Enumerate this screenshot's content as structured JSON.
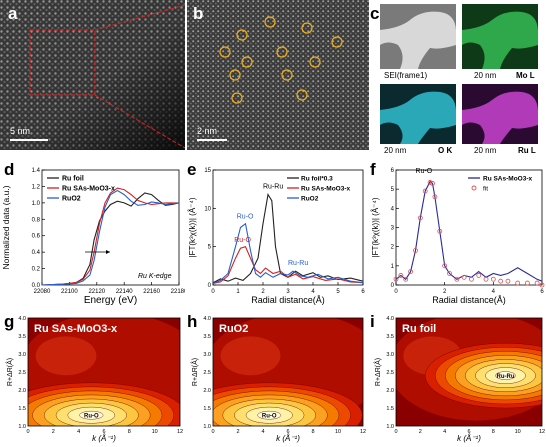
{
  "panels": {
    "a": {
      "label": "a",
      "scale": "5 nm"
    },
    "b": {
      "label": "b",
      "scale": "2 nm"
    },
    "c": {
      "label": "c",
      "maps": [
        "SEI(frame1)",
        "20 nm",
        "Mo L",
        "20 nm",
        "O K",
        "20 nm",
        "Ru L"
      ]
    },
    "d": {
      "label": "d"
    },
    "e": {
      "label": "e"
    },
    "f": {
      "label": "f"
    },
    "g": {
      "label": "g"
    },
    "h": {
      "label": "h"
    },
    "i": {
      "label": "i"
    }
  },
  "colors": {
    "ru_foil": "#222222",
    "ru_sas": "#d62020",
    "ruo2": "#2a5fd0",
    "fit": "#e05050",
    "f_data": "#2a2a9a",
    "em_green": "#2ea84a",
    "em_cyan": "#2aa8b8",
    "em_magenta": "#b03ab8"
  },
  "chart_data": [
    {
      "type": "line",
      "ylabel": "Normalized data (a.u.)",
      "xlabel": "Energy (eV)",
      "xlim": [
        22080,
        22180
      ],
      "ylim": [
        0.0,
        1.4
      ],
      "xticks": [
        "22080",
        "22100",
        "22120",
        "22140",
        "22160",
        "22180"
      ],
      "yticks": [
        "0.0",
        "0.2",
        "0.4",
        "0.6",
        "0.8",
        "1.0",
        "1.2",
        "1.4"
      ],
      "annotation": "Ru K-edge",
      "legend": [
        "Ru foil",
        "Ru SAs-MoO3-x",
        "RuO2"
      ],
      "series": [
        {
          "name": "Ru foil",
          "x": [
            22080,
            22095,
            22105,
            22110,
            22115,
            22118,
            22122,
            22126,
            22130,
            22135,
            22140,
            22145,
            22150,
            22155,
            22160,
            22165,
            22170,
            22175,
            22180
          ],
          "y": [
            0.0,
            0.01,
            0.03,
            0.08,
            0.25,
            0.55,
            0.78,
            0.9,
            0.98,
            1.02,
            1.0,
            0.96,
            1.05,
            1.12,
            1.1,
            1.03,
            0.97,
            0.98,
            1.0
          ]
        },
        {
          "name": "Ru SAs-MoO3-x",
          "x": [
            22080,
            22095,
            22105,
            22110,
            22115,
            22118,
            22122,
            22126,
            22130,
            22135,
            22140,
            22145,
            22150,
            22155,
            22160,
            22165,
            22170,
            22175,
            22180
          ],
          "y": [
            0.0,
            0.01,
            0.03,
            0.07,
            0.18,
            0.4,
            0.75,
            1.0,
            1.12,
            1.18,
            1.16,
            1.1,
            1.03,
            1.0,
            0.98,
            0.99,
            1.0,
            1.0,
            1.0
          ]
        },
        {
          "name": "RuO2",
          "x": [
            22080,
            22095,
            22105,
            22110,
            22115,
            22118,
            22122,
            22126,
            22130,
            22135,
            22140,
            22145,
            22150,
            22155,
            22160,
            22165,
            22170,
            22175,
            22180
          ],
          "y": [
            0.0,
            0.01,
            0.02,
            0.05,
            0.12,
            0.3,
            0.65,
            0.95,
            1.1,
            1.15,
            1.1,
            1.02,
            0.97,
            0.98,
            1.01,
            1.0,
            0.98,
            0.99,
            1.0
          ]
        }
      ]
    },
    {
      "type": "line",
      "ylabel": "|FT(k³χ(k))| (Å⁻⁴)",
      "xlabel": "Radial distance(Å)",
      "xlim": [
        0,
        6
      ],
      "ylim": [
        0,
        15
      ],
      "xticks": [
        "0",
        "1",
        "2",
        "3",
        "4",
        "5",
        "6"
      ],
      "yticks": [
        "0",
        "5",
        "10",
        "15"
      ],
      "legend": [
        "Ru foil*0.3",
        "Ru SAs-MoO3-x",
        "RuO2"
      ],
      "peak_labels": [
        "Ru-Ru",
        "Ru-O",
        "Ru-O",
        "Ru-Ru"
      ],
      "series": [
        {
          "name": "Ru foil*0.3",
          "x": [
            0,
            0.3,
            0.6,
            0.9,
            1.2,
            1.5,
            1.8,
            2.0,
            2.2,
            2.35,
            2.5,
            2.7,
            3.0,
            3.3,
            3.6,
            4.0,
            4.3,
            4.6,
            5.0,
            5.5,
            6.0
          ],
          "y": [
            0.3,
            0.8,
            0.5,
            0.9,
            0.6,
            1.5,
            3.5,
            8.0,
            11.8,
            11.0,
            5.0,
            1.5,
            1.0,
            1.8,
            1.2,
            1.6,
            1.0,
            1.2,
            0.7,
            0.9,
            0.5
          ]
        },
        {
          "name": "Ru SAs-MoO3-x",
          "x": [
            0,
            0.3,
            0.6,
            0.9,
            1.1,
            1.3,
            1.5,
            1.7,
            1.9,
            2.1,
            2.4,
            2.7,
            3.0,
            3.3,
            3.6,
            4.0,
            4.5,
            5.0,
            5.5,
            6.0
          ],
          "y": [
            0.2,
            0.4,
            1.2,
            3.5,
            4.8,
            5.0,
            3.5,
            2.0,
            1.5,
            2.2,
            1.5,
            1.8,
            1.0,
            1.4,
            0.8,
            1.1,
            0.6,
            0.8,
            0.4,
            0.3
          ]
        },
        {
          "name": "RuO2",
          "x": [
            0,
            0.3,
            0.6,
            0.9,
            1.1,
            1.3,
            1.5,
            1.7,
            1.9,
            2.1,
            2.4,
            2.7,
            3.0,
            3.2,
            3.5,
            3.8,
            4.2,
            4.6,
            5.0,
            5.5,
            6.0
          ],
          "y": [
            0.2,
            0.6,
            1.5,
            5.0,
            7.5,
            8.0,
            4.5,
            1.5,
            1.0,
            1.6,
            1.0,
            1.5,
            1.3,
            1.8,
            1.2,
            1.0,
            1.4,
            0.8,
            1.0,
            0.5,
            0.3
          ]
        }
      ]
    },
    {
      "type": "line",
      "ylabel": "|FT(k³χ(k))| (Å⁻⁴)",
      "xlabel": "Radial distance(Å)",
      "xlim": [
        0,
        6
      ],
      "ylim": [
        0,
        6
      ],
      "xticks": [
        "0",
        "2",
        "4",
        "6"
      ],
      "yticks": [
        "0",
        "1",
        "2",
        "3",
        "4",
        "5",
        "6"
      ],
      "peak_label": "Ru-O",
      "legend": [
        "Ru SAs-MoO3-x",
        "fit"
      ],
      "series": [
        {
          "name": "Ru SAs-MoO3-x",
          "x": [
            0,
            0.2,
            0.4,
            0.6,
            0.8,
            1.0,
            1.2,
            1.4,
            1.5,
            1.6,
            1.8,
            2.0,
            2.2,
            2.5,
            2.8,
            3.1,
            3.4,
            3.7,
            4.0,
            4.3,
            4.6,
            5.0,
            5.4,
            5.8,
            6.0
          ],
          "y": [
            0.3,
            0.5,
            0.3,
            0.7,
            1.8,
            3.5,
            4.9,
            5.4,
            5.3,
            4.6,
            2.8,
            1.0,
            0.6,
            0.3,
            0.5,
            0.4,
            0.7,
            0.4,
            0.6,
            0.5,
            0.6,
            0.9,
            0.6,
            0.3,
            0.2
          ]
        },
        {
          "name": "fit",
          "x": [
            0,
            0.2,
            0.4,
            0.6,
            0.8,
            1.0,
            1.2,
            1.4,
            1.5,
            1.6,
            1.8,
            2.0,
            2.2,
            2.5,
            2.8,
            3.1,
            3.4,
            3.7,
            4.0,
            4.3,
            4.6,
            5.0,
            5.4,
            5.8,
            6.0
          ],
          "y": [
            0.3,
            0.5,
            0.3,
            0.7,
            1.8,
            3.5,
            4.9,
            5.35,
            5.3,
            4.6,
            2.8,
            1.0,
            0.6,
            0.3,
            0.4,
            0.3,
            0.5,
            0.3,
            0.3,
            0.2,
            0.2,
            0.1,
            0.1,
            0.1,
            0.0
          ]
        }
      ]
    },
    {
      "type": "heatmap",
      "title": "Ru SAs-MoO3-x",
      "xlabel": "k (Å⁻¹)",
      "ylabel": "R+ΔR(Å)",
      "xlim": [
        0,
        12
      ],
      "ylim": [
        1.0,
        4.0
      ],
      "xticks": [
        "0",
        "2",
        "4",
        "6",
        "8",
        "10",
        "12"
      ],
      "yticks": [
        "1.0",
        "1.5",
        "2.0",
        "2.5",
        "3.0",
        "3.5",
        "4.0"
      ],
      "peak_label": "Ru-O",
      "peak": {
        "k": 5.0,
        "r": 1.3
      }
    },
    {
      "type": "heatmap",
      "title": "RuO2",
      "xlabel": "k (Å⁻¹)",
      "ylabel": "R+ΔR(Å)",
      "xlim": [
        0,
        12
      ],
      "ylim": [
        1.0,
        4.0
      ],
      "xticks": [
        "0",
        "2",
        "4",
        "6",
        "8",
        "10",
        "12"
      ],
      "yticks": [
        "1.0",
        "1.5",
        "2.0",
        "2.5",
        "3.0",
        "3.5",
        "4.0"
      ],
      "peak_label": "Ru-O",
      "peak": {
        "k": 4.5,
        "r": 1.3
      }
    },
    {
      "type": "heatmap",
      "title": "Ru foil",
      "xlabel": "k (Å⁻¹)",
      "ylabel": "R+ΔR(Å)",
      "xlim": [
        0,
        12
      ],
      "ylim": [
        1.0,
        4.0
      ],
      "xticks": [
        "0",
        "2",
        "4",
        "6",
        "8",
        "10",
        "12"
      ],
      "yticks": [
        "1.0",
        "1.5",
        "2.0",
        "2.5",
        "3.0",
        "3.5",
        "4.0"
      ],
      "peak_label": "Ru-Ru",
      "peak": {
        "k": 9.0,
        "r": 2.4
      }
    }
  ]
}
